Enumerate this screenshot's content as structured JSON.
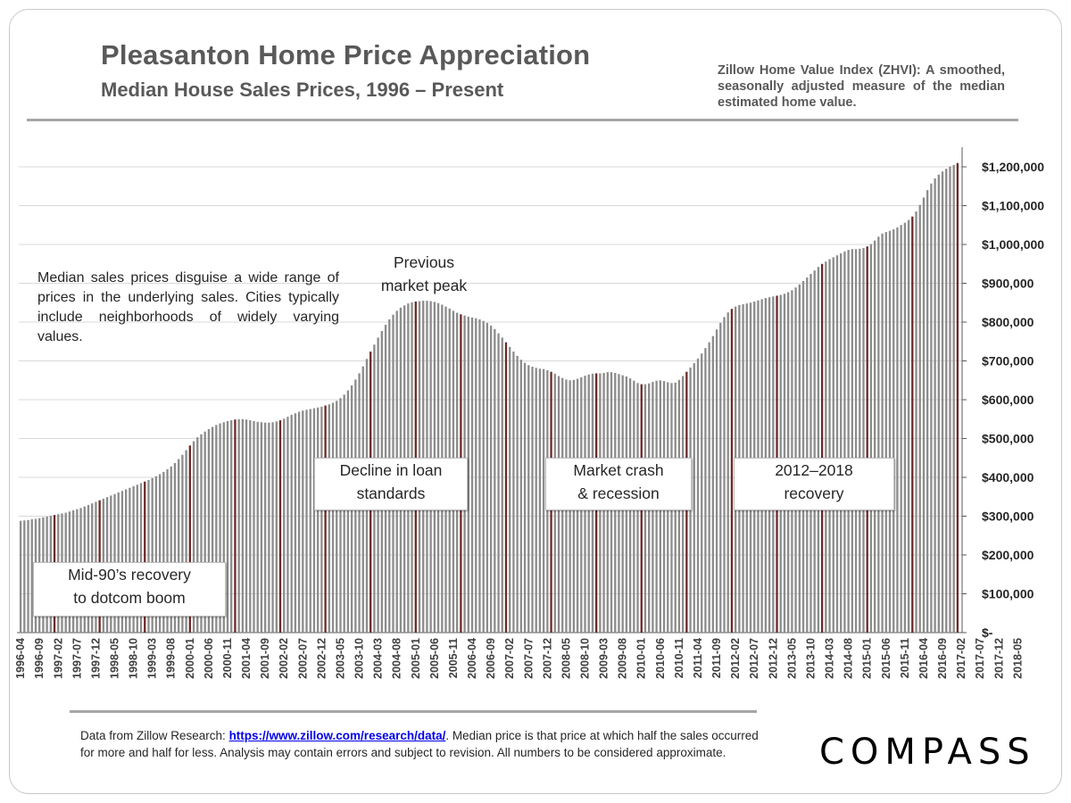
{
  "header": {
    "title": "Pleasanton Home Price Appreciation",
    "subtitle": "Median House Sales Prices, 1996 – Present",
    "zhvi_note": "Zillow Home Value Index (ZHVI): A smoothed, seasonally adjusted measure of the median estimated home value."
  },
  "notes": {
    "median_note": "Median sales prices disguise a wide range of prices in the underlying sales. Cities typically include neighborhoods of widely varying values."
  },
  "annotations": {
    "peak_line1": "Previous",
    "peak_line2": "market peak",
    "decline_line1": "Decline in loan",
    "decline_line2": "standards",
    "crash_line1": "Market crash",
    "crash_line2": "& recession",
    "recovery_line1": "2012–2018",
    "recovery_line2": "recovery",
    "dotcom_line1": "Mid-90’s recovery",
    "dotcom_line2": "to dotcom boom"
  },
  "footer": {
    "prefix": "Data from Zillow Research: ",
    "link_text": "https://www.zillow.com/research/data/",
    "rest": ". Median price is that price at which half the sales occurred for more and half for less. Analysis may contain errors and subject to revision. All numbers to be considered approximate."
  },
  "logo": {
    "text": "COMPASS"
  },
  "colors": {
    "bar": "#8c8c8c",
    "bar_highlight": "#6b2a2a",
    "gridline": "#d9d9d9",
    "text": "#595959"
  },
  "chart_data": {
    "type": "bar",
    "title": "Pleasanton Home Price Appreciation",
    "subtitle": "Median House Sales Prices, 1996 – Present",
    "x_start": "1996-04",
    "x_end": "2018-09",
    "x_frequency": "monthly",
    "ylim": [
      0,
      1250000
    ],
    "y_ticks": [
      0,
      100000,
      200000,
      300000,
      400000,
      500000,
      600000,
      700000,
      800000,
      900000,
      1000000,
      1100000,
      1200000
    ],
    "y_tick_labels": [
      "$-",
      "$100,000",
      "$200,000",
      "$300,000",
      "$400,000",
      "$500,000",
      "$600,000",
      "$700,000",
      "$800,000",
      "$900,000",
      "$1,000,000",
      "$1,100,000",
      "$1,200,000"
    ],
    "x_tick_labels": [
      "1996-04",
      "1996-09",
      "1997-02",
      "1997-07",
      "1997-12",
      "1998-05",
      "1998-10",
      "1999-03",
      "1999-08",
      "2000-01",
      "2000-06",
      "2000-11",
      "2001-04",
      "2001-09",
      "2002-02",
      "2002-07",
      "2002-12",
      "2003-05",
      "2003-10",
      "2004-03",
      "2004-08",
      "2005-01",
      "2005-06",
      "2005-11",
      "2006-04",
      "2006-09",
      "2007-02",
      "2007-07",
      "2007-12",
      "2008-05",
      "2008-10",
      "2009-03",
      "2009-08",
      "2010-01",
      "2010-06",
      "2010-11",
      "2011-04",
      "2011-09",
      "2012-02",
      "2012-07",
      "2012-12",
      "2013-05",
      "2013-10",
      "2014-03",
      "2014-08",
      "2015-01",
      "2015-06",
      "2015-11",
      "2016-04",
      "2016-09",
      "2017-02",
      "2017-07",
      "2017-12",
      "2018-05"
    ],
    "highlight_month": "January",
    "grid": true,
    "y_axis_side": "right",
    "series": [
      {
        "values": [
          288000,
          289000,
          290000,
          292000,
          293000,
          295000,
          297000,
          299000,
          301000,
          303000,
          305000,
          307000,
          309000,
          312000,
          315000,
          318000,
          321000,
          325000,
          329000,
          333000,
          337000,
          341000,
          345000,
          349000,
          353000,
          357000,
          361000,
          365000,
          369000,
          373000,
          377000,
          381000,
          385000,
          389000,
          393000,
          398000,
          403000,
          408000,
          414000,
          421000,
          428000,
          437000,
          447000,
          458000,
          470000,
          482000,
          493000,
          503000,
          511000,
          518000,
          524000,
          530000,
          535000,
          539000,
          542000,
          545000,
          547000,
          549000,
          550000,
          550000,
          549000,
          547000,
          545000,
          543000,
          542000,
          541000,
          541000,
          542000,
          544000,
          547000,
          551000,
          556000,
          561000,
          565000,
          569000,
          572000,
          574000,
          576000,
          578000,
          580000,
          582000,
          585000,
          588000,
          592000,
          597000,
          604000,
          613000,
          624000,
          637000,
          652000,
          668000,
          686000,
          705000,
          724000,
          742000,
          760000,
          777000,
          793000,
          807000,
          819000,
          829000,
          837000,
          843000,
          848000,
          851000,
          853000,
          854000,
          855000,
          855000,
          854000,
          852000,
          849000,
          845000,
          840000,
          835000,
          829000,
          824000,
          820000,
          817000,
          814000,
          812000,
          810000,
          807000,
          803000,
          798000,
          791000,
          782000,
          771000,
          760000,
          748000,
          736000,
          724000,
          713000,
          703000,
          695000,
          689000,
          685000,
          682000,
          680000,
          679000,
          676000,
          672000,
          667000,
          661000,
          656000,
          652000,
          650000,
          651000,
          654000,
          658000,
          662000,
          665000,
          667000,
          668000,
          668000,
          669000,
          671000,
          671000,
          669000,
          666000,
          663000,
          660000,
          655000,
          649000,
          643000,
          640000,
          640000,
          642000,
          646000,
          649000,
          650000,
          648000,
          645000,
          643000,
          644000,
          651000,
          661000,
          672000,
          683000,
          694000,
          706000,
          719000,
          733000,
          748000,
          764000,
          781000,
          798000,
          813000,
          825000,
          834000,
          840000,
          844000,
          846000,
          848000,
          850000,
          853000,
          856000,
          859000,
          862000,
          864000,
          866000,
          868000,
          870000,
          873000,
          877000,
          882000,
          889000,
          897000,
          906000,
          915000,
          924000,
          933000,
          942000,
          950000,
          956000,
          962000,
          967000,
          972000,
          977000,
          982000,
          986000,
          988000,
          988000,
          989000,
          991000,
          995000,
          1001000,
          1010000,
          1020000,
          1028000,
          1032000,
          1035000,
          1039000,
          1044000,
          1050000,
          1056000,
          1063000,
          1072000,
          1085000,
          1102000,
          1121000,
          1140000,
          1157000,
          1170000,
          1180000,
          1188000,
          1195000,
          1201000,
          1205000,
          1210000
        ]
      }
    ]
  }
}
